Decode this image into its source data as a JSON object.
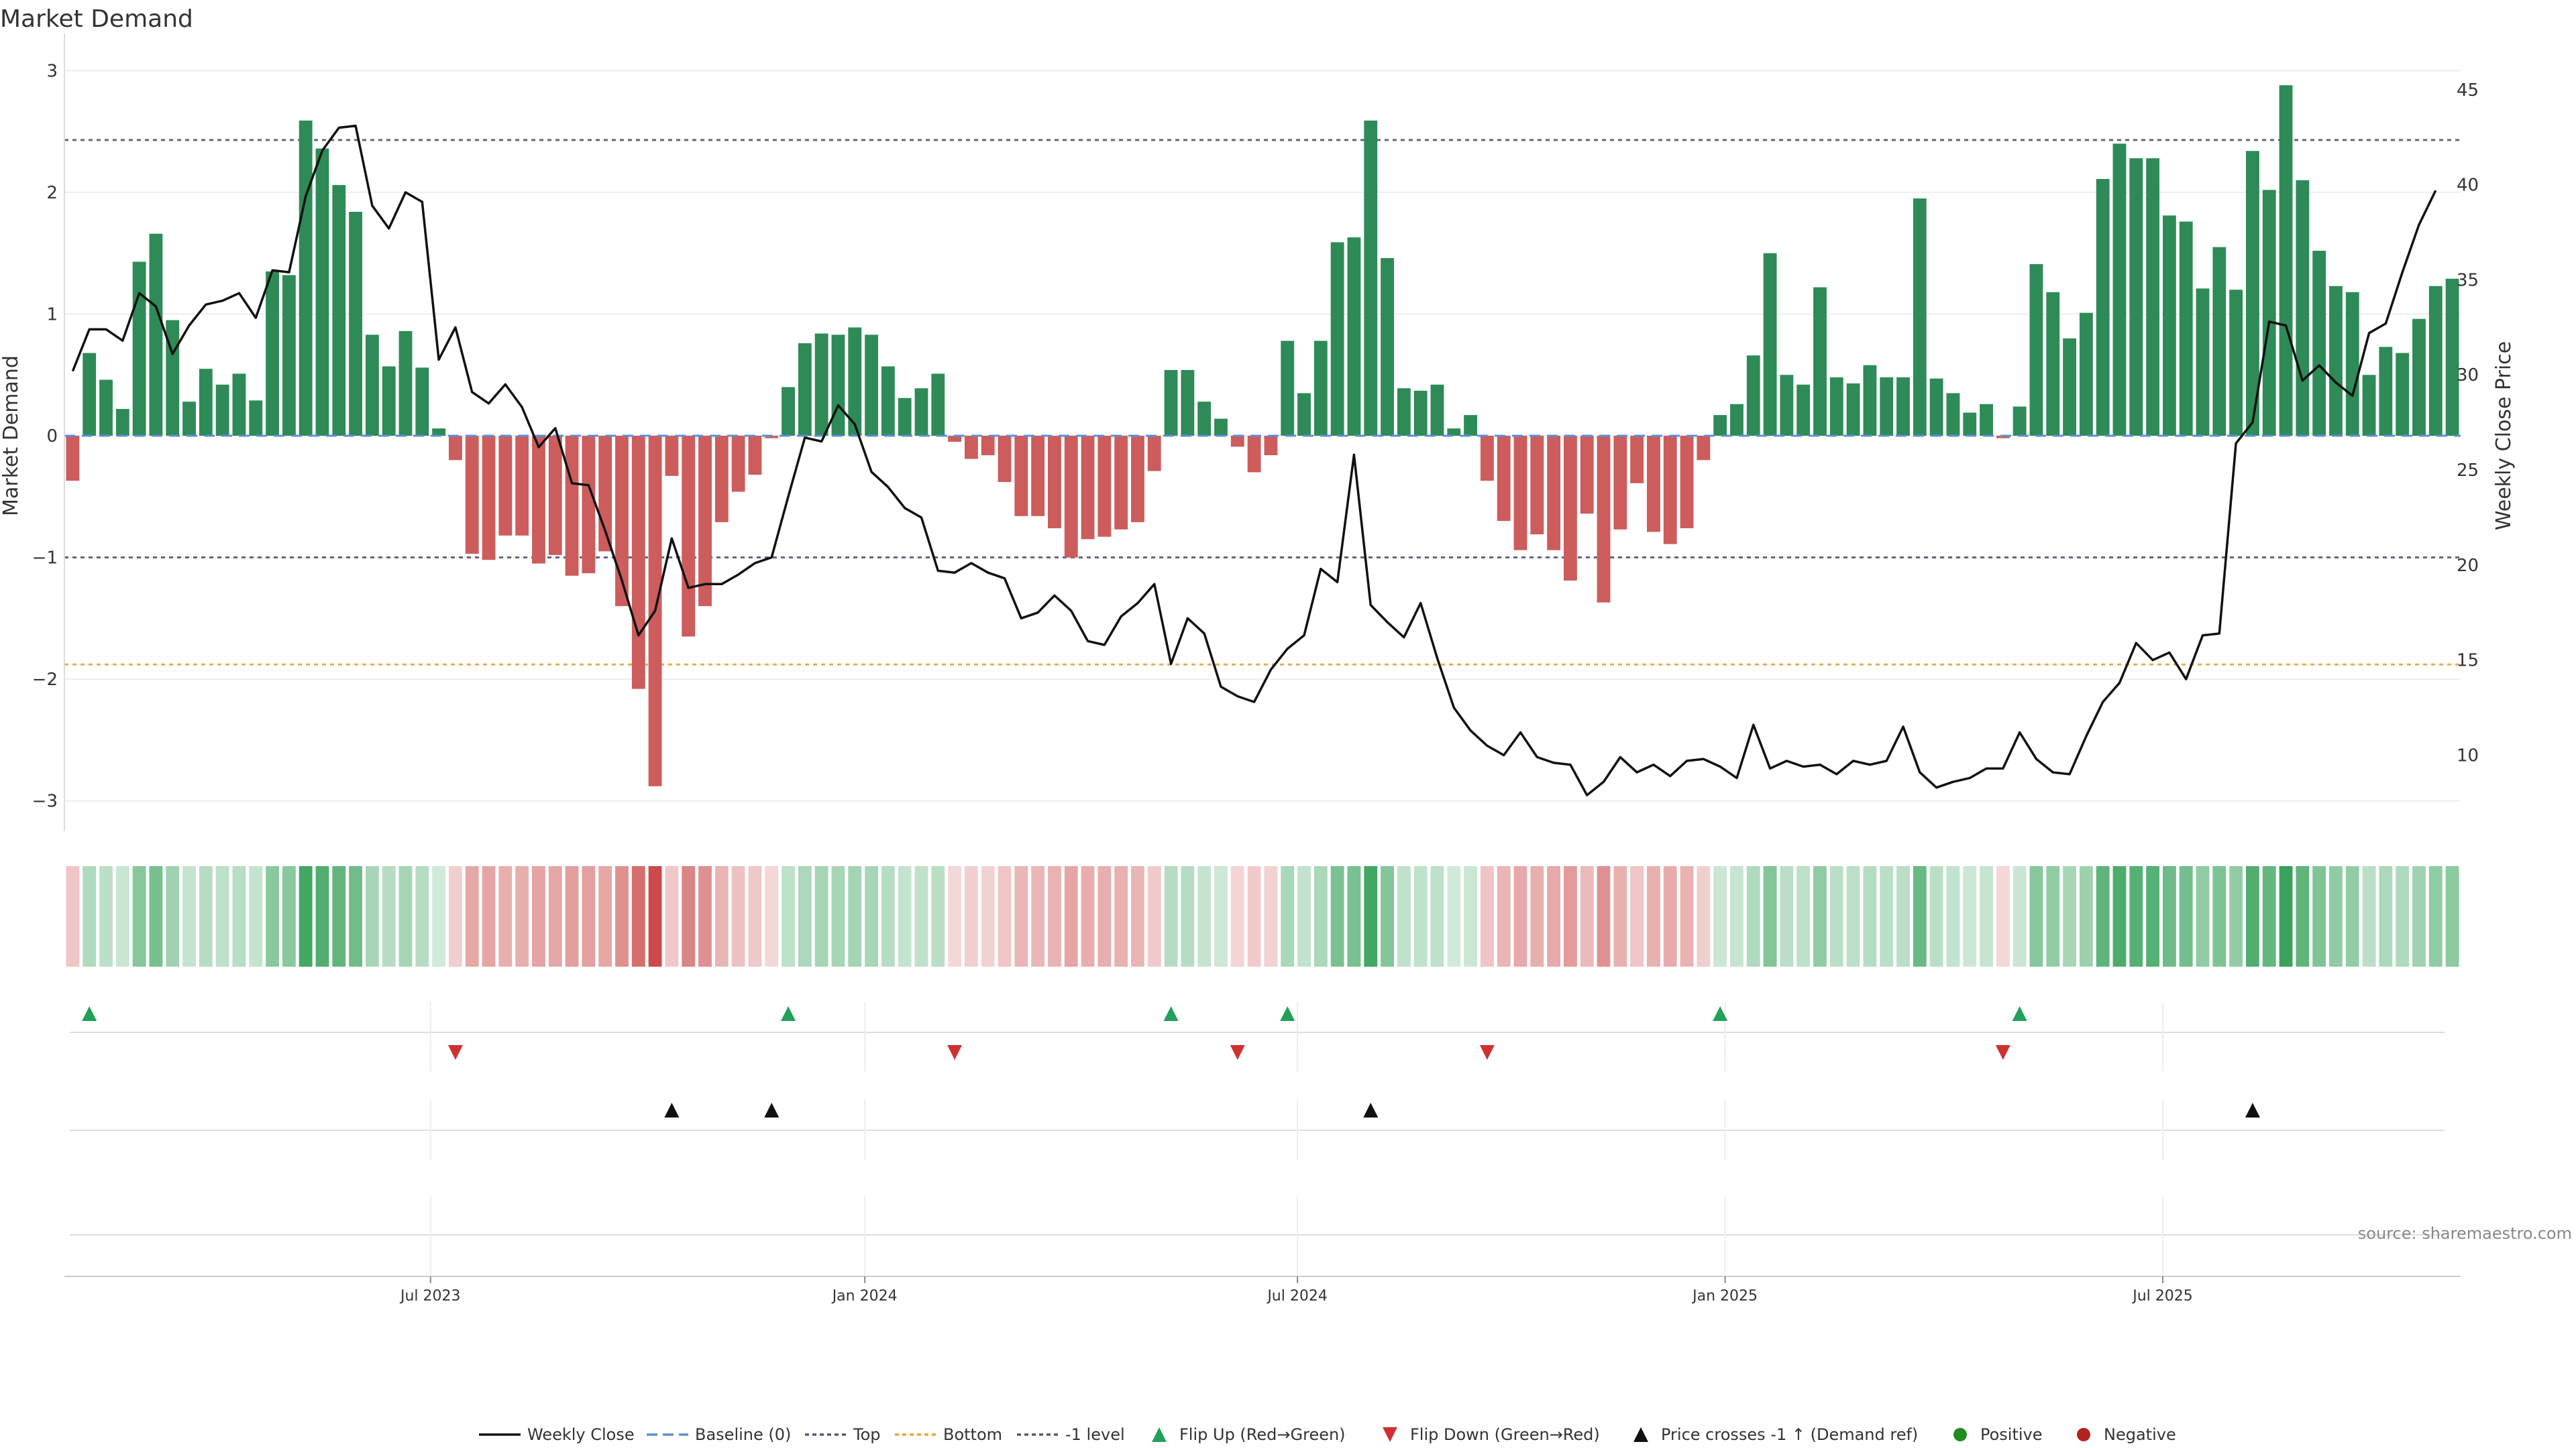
{
  "chart_data": {
    "type": "bar",
    "title": "Market Demand",
    "ylabel": "Market Demand",
    "y2label": "Weekly Close Price",
    "ylim": [
      -3.25,
      3.25
    ],
    "y2lim": [
      6.0,
      47.6
    ],
    "yticks": [
      3,
      2,
      1,
      0,
      -1,
      -2,
      -3
    ],
    "yticklabels": [
      "3",
      "2",
      "1",
      "0",
      "−1",
      "−2",
      "−3"
    ],
    "y2ticks": [
      45,
      40,
      35,
      30,
      25,
      20,
      15,
      10
    ],
    "y2ticklabels": [
      "45",
      "40",
      "35",
      "30",
      "25",
      "20",
      "15",
      "10"
    ],
    "xticks": [
      {
        "label": "Jul 2023",
        "index": 21.5
      },
      {
        "label": "Jan 2024",
        "index": 47.6
      },
      {
        "label": "Jul 2024",
        "index": 73.6
      },
      {
        "label": "Jan 2025",
        "index": 99.3
      },
      {
        "label": "Jul 2025",
        "index": 125.6
      }
    ],
    "reference_lines": [
      {
        "name": "Top",
        "value": 2.43,
        "color": "#555577"
      },
      {
        "name": "-1 level",
        "value": -1.0,
        "color": "#555577"
      },
      {
        "name": "Bottom",
        "value": -1.88,
        "color": "#e5a53a"
      },
      {
        "name": "Baseline (0)",
        "value": 0.0,
        "color": "#5b8fd6"
      }
    ],
    "demand": [
      -0.37,
      0.68,
      0.46,
      0.22,
      1.43,
      1.66,
      0.95,
      0.28,
      0.55,
      0.42,
      0.51,
      0.29,
      1.35,
      1.32,
      2.59,
      2.36,
      2.06,
      1.84,
      0.83,
      0.57,
      0.86,
      0.56,
      0.06,
      -0.2,
      -0.97,
      -1.02,
      -0.82,
      -0.82,
      -1.05,
      -0.98,
      -1.15,
      -1.13,
      -0.95,
      -1.4,
      -2.08,
      -2.88,
      -0.33,
      -1.65,
      -1.4,
      -0.71,
      -0.46,
      -0.32,
      -0.02,
      0.4,
      0.76,
      0.84,
      0.83,
      0.89,
      0.83,
      0.57,
      0.31,
      0.39,
      0.51,
      -0.05,
      -0.19,
      -0.16,
      -0.38,
      -0.66,
      -0.66,
      -0.76,
      -1.0,
      -0.85,
      -0.83,
      -0.77,
      -0.71,
      -0.29,
      0.54,
      0.54,
      0.28,
      0.14,
      -0.09,
      -0.3,
      -0.16,
      0.78,
      0.35,
      0.78,
      1.59,
      1.63,
      2.59,
      1.46,
      0.39,
      0.37,
      0.42,
      0.06,
      0.17,
      -0.37,
      -0.7,
      -0.94,
      -0.81,
      -0.94,
      -1.19,
      -0.64,
      -1.37,
      -0.77,
      -0.39,
      -0.79,
      -0.89,
      -0.76,
      -0.2,
      0.17,
      0.26,
      0.66,
      1.5,
      0.5,
      0.42,
      1.22,
      0.48,
      0.43,
      0.58,
      0.48,
      0.48,
      1.95,
      0.47,
      0.35,
      0.19,
      0.26,
      -0.02,
      0.24,
      1.41,
      1.18,
      0.8,
      1.01,
      2.11,
      2.4,
      2.28,
      2.28,
      1.81,
      1.76,
      1.21,
      1.55,
      1.2,
      2.34,
      2.02,
      2.88,
      2.1,
      1.52,
      1.23,
      1.18,
      0.5,
      0.73,
      0.68,
      0.96,
      1.23,
      1.29
    ],
    "close_series": {
      "name": "Weekly Close",
      "values": [
        30.2,
        32.4,
        32.4,
        31.8,
        34.3,
        33.6,
        31.1,
        32.6,
        33.7,
        33.9,
        34.3,
        33.0,
        35.5,
        35.4,
        39.4,
        41.8,
        43.0,
        43.1,
        38.9,
        37.7,
        39.6,
        39.1,
        30.8,
        32.5,
        29.1,
        28.5,
        29.5,
        28.3,
        26.2,
        27.2,
        24.3,
        24.2,
        21.8,
        19.2,
        16.3,
        17.6,
        21.4,
        18.8,
        19.0,
        19.0,
        19.5,
        20.1,
        20.4,
        23.6,
        26.7,
        26.5,
        28.4,
        27.4,
        24.9,
        24.1,
        23.0,
        22.5,
        19.7,
        19.6,
        20.1,
        19.6,
        19.3,
        17.2,
        17.5,
        18.4,
        17.6,
        16.0,
        15.8,
        17.3,
        18.0,
        19.0,
        14.8,
        17.2,
        16.4,
        13.6,
        13.1,
        12.8,
        14.5,
        15.6,
        16.3,
        19.8,
        19.1,
        25.8,
        17.9,
        17.0,
        16.2,
        18.0,
        15.1,
        12.5,
        11.3,
        10.5,
        10.0,
        11.2,
        9.9,
        9.6,
        9.5,
        7.9,
        8.6,
        9.9,
        9.1,
        9.5,
        8.9,
        9.7,
        9.8,
        9.4,
        8.8,
        11.6,
        9.3,
        9.7,
        9.4,
        9.5,
        9.0,
        9.7,
        9.5,
        9.7,
        11.5,
        9.1,
        8.3,
        8.6,
        8.8,
        9.3,
        9.3,
        11.2,
        9.8,
        9.1,
        9.0,
        11.0,
        12.8,
        13.8,
        15.9,
        15.0,
        15.4,
        14.0,
        16.3,
        16.4,
        26.4,
        27.5,
        32.8,
        32.6,
        29.7,
        30.5,
        29.6,
        28.9,
        32.2,
        32.7,
        35.4,
        37.9,
        39.7
      ]
    },
    "markers": {
      "flip_up_indices": [
        1,
        43,
        66,
        73,
        99,
        117
      ],
      "flip_down_indices": [
        23,
        53,
        70,
        85,
        116
      ],
      "price_cross_indices": [
        36,
        42,
        78,
        131
      ]
    },
    "legend": [
      "Weekly Close",
      "Baseline (0)",
      "Top",
      "Bottom",
      "-1 level",
      "Flip Up (Red→Green)",
      "Flip Down (Green→Red)",
      "Price crosses -1 ↑ (Demand ref)",
      "Positive",
      "Negative"
    ],
    "source_note": "source: sharemaestro.com"
  },
  "colors": {
    "positive_bar": "#2e8b57",
    "negative_bar": "#cd5c5c",
    "line": "#111111",
    "flip_up": "#22a05a",
    "flip_down": "#d03030",
    "cross": "#111111",
    "positive_dot": "#228b22",
    "negative_dot": "#b22222",
    "heat_positive": "#2e9e52",
    "heat_negative": "#c94040"
  }
}
